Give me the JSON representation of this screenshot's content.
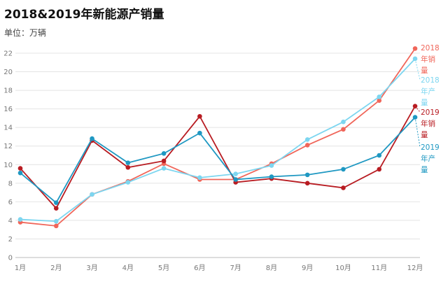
{
  "chart_data": {
    "type": "line",
    "title": "2018&2019年新能源产销量",
    "subtitle": "单位：万辆",
    "xlabel": "",
    "ylabel": "",
    "categories": [
      "1月",
      "2月",
      "3月",
      "4月",
      "5月",
      "6月",
      "7月",
      "8月",
      "9月",
      "10月",
      "11月",
      "12月"
    ],
    "ylim": [
      0,
      22
    ],
    "yticks": [
      0,
      2,
      4,
      6,
      8,
      10,
      12,
      14,
      16,
      18,
      20,
      22
    ],
    "grid": true,
    "legend": "end-of-line labels (right)",
    "series": [
      {
        "name": "2018年销量",
        "label_lines": [
          "2018",
          "年销",
          "量"
        ],
        "color": "#f0665a",
        "values": [
          3.8,
          3.4,
          6.8,
          8.2,
          10.1,
          8.4,
          8.4,
          10.1,
          12.1,
          13.8,
          16.9,
          22.5
        ]
      },
      {
        "name": "2018年产量",
        "label_lines": [
          "2018",
          "年产",
          "量"
        ],
        "color": "#7dd6f0",
        "values": [
          4.1,
          3.9,
          6.8,
          8.1,
          9.6,
          8.6,
          9.0,
          9.9,
          12.7,
          14.6,
          17.3,
          21.4
        ]
      },
      {
        "name": "2019年销量",
        "label_lines": [
          "2019",
          "年销",
          "量"
        ],
        "color": "#b81c22",
        "values": [
          9.6,
          5.3,
          12.6,
          9.7,
          10.4,
          15.2,
          8.1,
          8.5,
          8.0,
          7.5,
          9.5,
          16.3
        ]
      },
      {
        "name": "2019年产量",
        "label_lines": [
          "2019",
          "年产",
          "量"
        ],
        "color": "#1f98c2",
        "values": [
          9.1,
          5.9,
          12.8,
          10.2,
          11.2,
          13.4,
          8.4,
          8.7,
          8.9,
          9.5,
          11.0,
          15.1
        ]
      }
    ]
  }
}
